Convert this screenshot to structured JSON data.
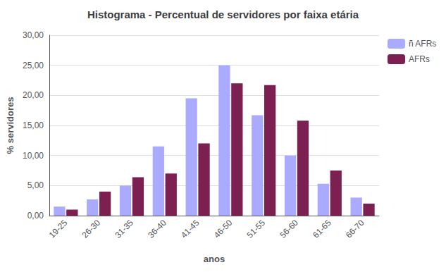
{
  "chart_data": {
    "type": "bar",
    "title": "Histograma - Percentual de servidores por faixa etária",
    "xlabel": "anos",
    "ylabel": "% servidores",
    "categories": [
      "19-25",
      "26-30",
      "31-35",
      "36-40",
      "41-45",
      "46-50",
      "51-55",
      "56-60",
      "61-65",
      "66-70"
    ],
    "series": [
      {
        "name": "ñ AFRs",
        "color": "#AAAAFF",
        "values": [
          1.5,
          2.7,
          5.0,
          11.5,
          19.5,
          25.0,
          16.7,
          10.0,
          5.3,
          3.0
        ]
      },
      {
        "name": "AFRs",
        "color": "#7B2050",
        "values": [
          1.0,
          4.0,
          6.4,
          7.0,
          12.0,
          22.0,
          21.7,
          15.8,
          7.5,
          2.0
        ]
      }
    ],
    "ylim": [
      0,
      30.0
    ],
    "yticks": [
      {
        "value": 0.0,
        "label": "0,00"
      },
      {
        "value": 5.0,
        "label": "5,00"
      },
      {
        "value": 10.0,
        "label": "10,00"
      },
      {
        "value": 15.0,
        "label": "15,00"
      },
      {
        "value": 20.0,
        "label": "20,00"
      },
      {
        "value": 25.0,
        "label": "25,00"
      },
      {
        "value": 30.0,
        "label": "30,00"
      }
    ],
    "grid": true,
    "legend": "right"
  }
}
